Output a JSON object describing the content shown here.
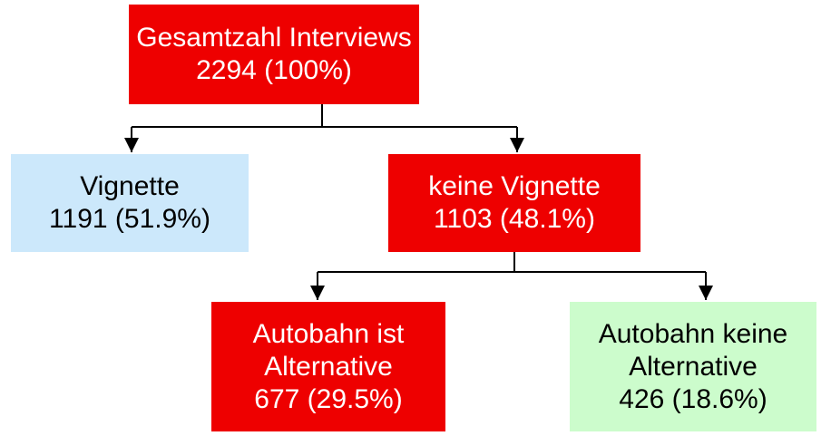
{
  "nodes": [
    {
      "lines": [
        "Gesamtzahl Interviews",
        "2294 (100%)"
      ]
    },
    {
      "lines": [
        "Vignette",
        "1191 (51.9%)"
      ]
    },
    {
      "lines": [
        "keine Vignette",
        "1103 (48.1%)"
      ]
    },
    {
      "lines": [
        "Autobahn ist",
        "Alternative",
        "677 (29.5%)"
      ]
    },
    {
      "lines": [
        "Autobahn keine",
        "Alternative",
        "426 (18.6%)"
      ]
    }
  ]
}
